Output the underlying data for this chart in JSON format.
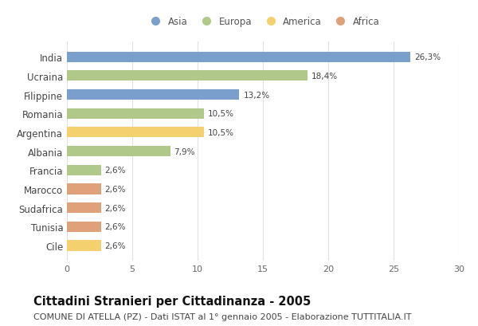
{
  "countries": [
    "India",
    "Ucraina",
    "Filippine",
    "Romania",
    "Argentina",
    "Albania",
    "Francia",
    "Marocco",
    "Sudafrica",
    "Tunisia",
    "Cile"
  ],
  "values": [
    26.3,
    18.4,
    13.2,
    10.5,
    10.5,
    7.9,
    2.6,
    2.6,
    2.6,
    2.6,
    2.6
  ],
  "labels": [
    "26,3%",
    "18,4%",
    "13,2%",
    "10,5%",
    "10,5%",
    "7,9%",
    "2,6%",
    "2,6%",
    "2,6%",
    "2,6%",
    "2,6%"
  ],
  "continents": [
    "Asia",
    "Europa",
    "Asia",
    "Europa",
    "America",
    "Europa",
    "Europa",
    "Africa",
    "Africa",
    "Africa",
    "America"
  ],
  "colors": {
    "Asia": "#7b9fcc",
    "Europa": "#b0c98a",
    "America": "#f5d06e",
    "Africa": "#e0a07a"
  },
  "legend_order": [
    "Asia",
    "Europa",
    "America",
    "Africa"
  ],
  "xlim": [
    0,
    30
  ],
  "xticks": [
    0,
    5,
    10,
    15,
    20,
    25,
    30
  ],
  "title": "Cittadini Stranieri per Cittadinanza - 2005",
  "subtitle": "COMUNE DI ATELLA (PZ) - Dati ISTAT al 1° gennaio 2005 - Elaborazione TUTTITALIA.IT",
  "title_fontsize": 10.5,
  "subtitle_fontsize": 8,
  "background_color": "#ffffff",
  "grid_color": "#e0e0e0",
  "bar_height": 0.55
}
